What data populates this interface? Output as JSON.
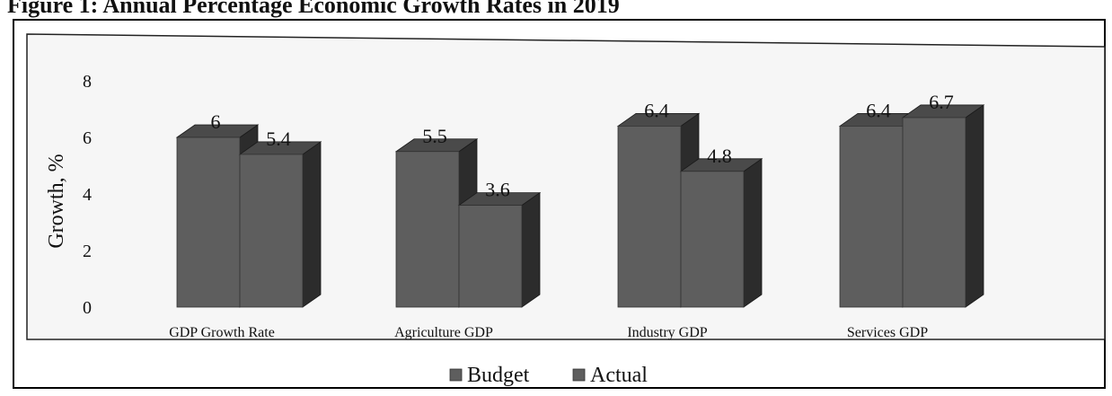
{
  "caption": "Figure 1: Annual Percentage Economic Growth Rates in 2019",
  "chart_data": {
    "type": "bar",
    "title": "",
    "xlabel": "",
    "ylabel": "Growth, %",
    "ylim": [
      0,
      8
    ],
    "yticks": [
      0,
      2,
      4,
      6,
      8
    ],
    "grid": false,
    "legend_position": "bottom",
    "categories": [
      "GDP Growth Rate",
      "Agriculture GDP",
      "Industry GDP",
      "Services GDP"
    ],
    "series": [
      {
        "name": "Budget",
        "values": [
          6,
          5.5,
          6.4,
          6.4
        ],
        "labels": [
          "6",
          "5.5",
          "6.4",
          "6.4"
        ]
      },
      {
        "name": "Actual",
        "values": [
          5.4,
          3.6,
          4.8,
          6.7
        ],
        "labels": [
          "5.4",
          "3.6",
          "4.8",
          "6.7"
        ]
      }
    ],
    "colors": {
      "front": "#5e5e5e",
      "side": "#2c2c2c",
      "top": "#4a4a4a",
      "plot_bg": "#f6f6f6"
    }
  }
}
